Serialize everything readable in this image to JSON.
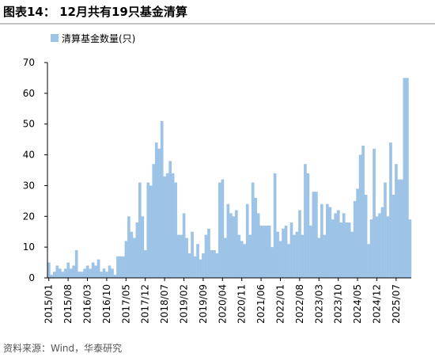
{
  "chart_data": {
    "type": "bar",
    "title": "图表14： 12月共有19只基金清算",
    "source": "资料来源：Wind，华泰研究",
    "categories": [
      "2015/01",
      null,
      null,
      null,
      null,
      null,
      null,
      "2015/08",
      null,
      null,
      null,
      null,
      null,
      null,
      "2016/03",
      null,
      null,
      null,
      null,
      null,
      null,
      "2016/10",
      null,
      null,
      null,
      null,
      null,
      null,
      "2017/05",
      null,
      null,
      null,
      null,
      null,
      null,
      "2017/12",
      null,
      null,
      null,
      null,
      null,
      null,
      "2018/07",
      null,
      null,
      null,
      null,
      null,
      null,
      "2019/02",
      null,
      null,
      null,
      null,
      null,
      null,
      "2019/09",
      null,
      null,
      null,
      null,
      null,
      null,
      "2020/04",
      null,
      null,
      null,
      null,
      null,
      null,
      "2020/11",
      null,
      null,
      null,
      null,
      null,
      null,
      "2021/06",
      null,
      null,
      null,
      null,
      null,
      null,
      "2022/01",
      null,
      null,
      null,
      null,
      null,
      null,
      "2022/08",
      null,
      null,
      null,
      null,
      null,
      null,
      "2023/03",
      null,
      null,
      null,
      null,
      null,
      null,
      "2023/10",
      null,
      null,
      null,
      null,
      null,
      null,
      "2024/05",
      null,
      null,
      null,
      null,
      null,
      null,
      "2024/12",
      null,
      null,
      null,
      null,
      null,
      null,
      "2025/07",
      null,
      null,
      null,
      null,
      null
    ],
    "series": [
      {
        "name": "清算基金数量(只)",
        "color": "#9dc3e6",
        "values": [
          5,
          1,
          2,
          4,
          3,
          2,
          3,
          5,
          3,
          4,
          9,
          2,
          2,
          3,
          4,
          3,
          5,
          4,
          6,
          2,
          3,
          2,
          4,
          3,
          1,
          7,
          7,
          7,
          12,
          20,
          15,
          13,
          18,
          31,
          20,
          9,
          31,
          30,
          37,
          44,
          42,
          51,
          33,
          34,
          38,
          34,
          31,
          14,
          14,
          21,
          13,
          8,
          15,
          7,
          11,
          6,
          8,
          14,
          16,
          9,
          9,
          8,
          31,
          32,
          13,
          24,
          21,
          20,
          22,
          14,
          12,
          11,
          24,
          14,
          31,
          26,
          21,
          17,
          17,
          17,
          17,
          10,
          34,
          15,
          12,
          16,
          17,
          11,
          18,
          14,
          15,
          22,
          14,
          37,
          34,
          17,
          28,
          28,
          13,
          24,
          14,
          24,
          23,
          19,
          21,
          22,
          18,
          21,
          18,
          18,
          15,
          25,
          29,
          40,
          43,
          27,
          11,
          19,
          42,
          20,
          21,
          23,
          31,
          20,
          44,
          27,
          37,
          32,
          32,
          65,
          65,
          19
        ]
      }
    ],
    "ylim": [
      0,
      70
    ],
    "yticks": [
      0,
      10,
      20,
      30,
      40,
      50,
      60,
      70
    ],
    "legend": "top-left"
  }
}
